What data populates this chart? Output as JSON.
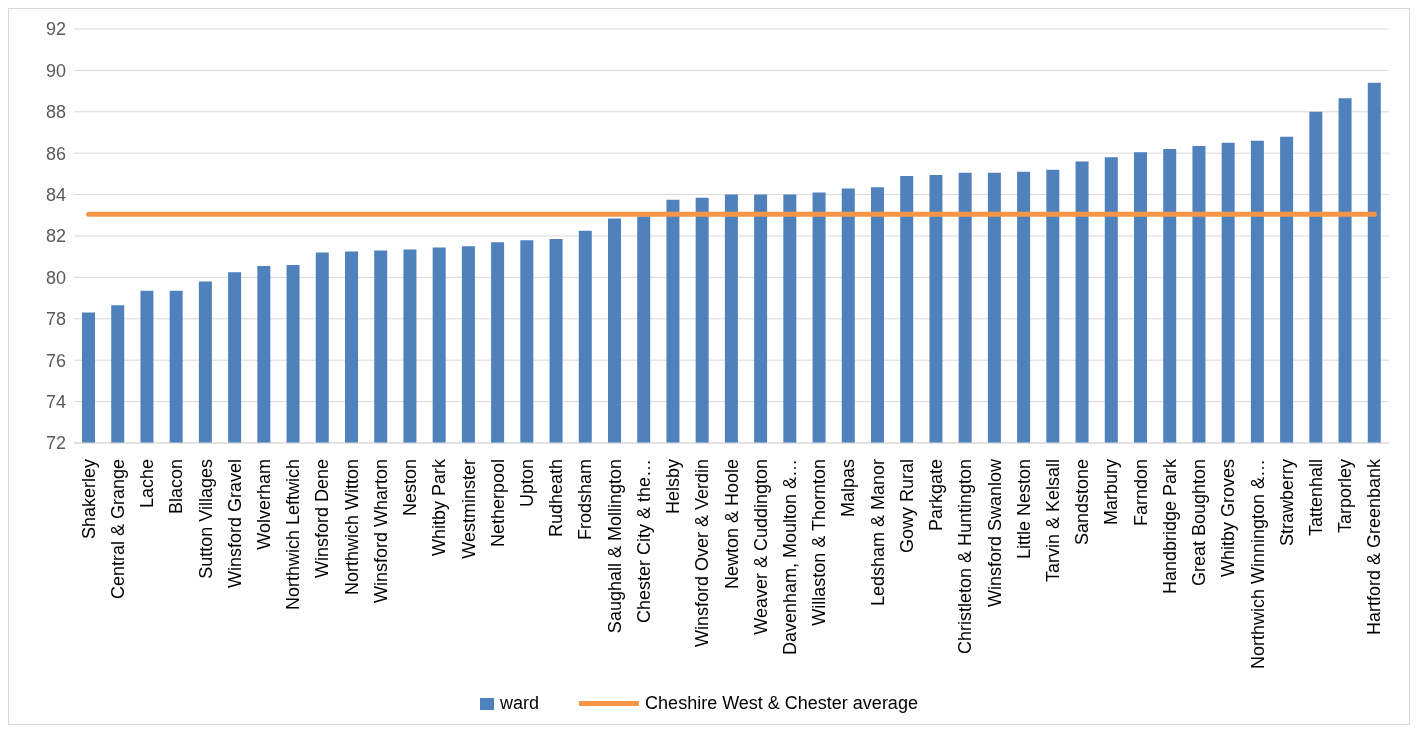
{
  "chart_data": {
    "type": "bar",
    "categories": [
      "Shakerley",
      "Central & Grange",
      "Lache",
      "Blacon",
      "Sutton Villages",
      "Winsford Gravel",
      "Wolverham",
      "Northwich Leftwich",
      "Winsford Dene",
      "Northwich Witton",
      "Winsford Wharton",
      "Neston",
      "Whitby Park",
      "Westminster",
      "Netherpool",
      "Upton",
      "Rudheath",
      "Frodsham",
      "Saughall & Mollington",
      "Chester City & the…",
      "Helsby",
      "Winsford Over & Verdin",
      "Newton & Hoole",
      "Weaver & Cuddington",
      "Davenham, Moulton &…",
      "Willaston & Thornton",
      "Malpas",
      "Ledsham & Manor",
      "Gowy Rural",
      "Parkgate",
      "Christleton & Huntington",
      "Winsford Swanlow",
      "Little Neston",
      "Tarvin & Kelsall",
      "Sandstone",
      "Marbury",
      "Farndon",
      "Handbridge Park",
      "Great Boughton",
      "Whitby Groves",
      "Northwich Winnington &…",
      "Strawberry",
      "Tattenhall",
      "Tarporley",
      "Hartford & Greenbank"
    ],
    "series": [
      {
        "name": "ward",
        "color": "#4f81bd",
        "values": [
          78.3,
          78.65,
          79.35,
          79.35,
          79.8,
          80.25,
          80.55,
          80.6,
          81.2,
          81.25,
          81.3,
          81.35,
          81.45,
          81.5,
          81.7,
          81.8,
          81.85,
          82.25,
          82.85,
          82.95,
          83.75,
          83.85,
          84.0,
          84.0,
          84.0,
          84.1,
          84.3,
          84.35,
          84.9,
          84.95,
          85.05,
          85.05,
          85.1,
          85.2,
          85.6,
          85.8,
          86.05,
          86.2,
          86.35,
          86.5,
          86.6,
          86.8,
          88.0,
          88.65,
          89.4
        ]
      },
      {
        "name": "Cheshire West & Chester average",
        "type": "line",
        "color": "#f79646",
        "values": [
          83.05,
          83.05,
          83.05,
          83.05,
          83.05,
          83.05,
          83.05,
          83.05,
          83.05,
          83.05,
          83.05,
          83.05,
          83.05,
          83.05,
          83.05,
          83.05,
          83.05,
          83.05,
          83.05,
          83.05,
          83.05,
          83.05,
          83.05,
          83.05,
          83.05,
          83.05,
          83.05,
          83.05,
          83.05,
          83.05,
          83.05,
          83.05,
          83.05,
          83.05,
          83.05,
          83.05,
          83.05,
          83.05,
          83.05,
          83.05,
          83.05,
          83.05,
          83.05,
          83.05,
          83.05
        ]
      }
    ],
    "ylim": [
      72,
      92
    ],
    "yticks": [
      72,
      74,
      76,
      78,
      80,
      82,
      84,
      86,
      88,
      90,
      92
    ],
    "grid": "y",
    "legend": "bottom"
  }
}
